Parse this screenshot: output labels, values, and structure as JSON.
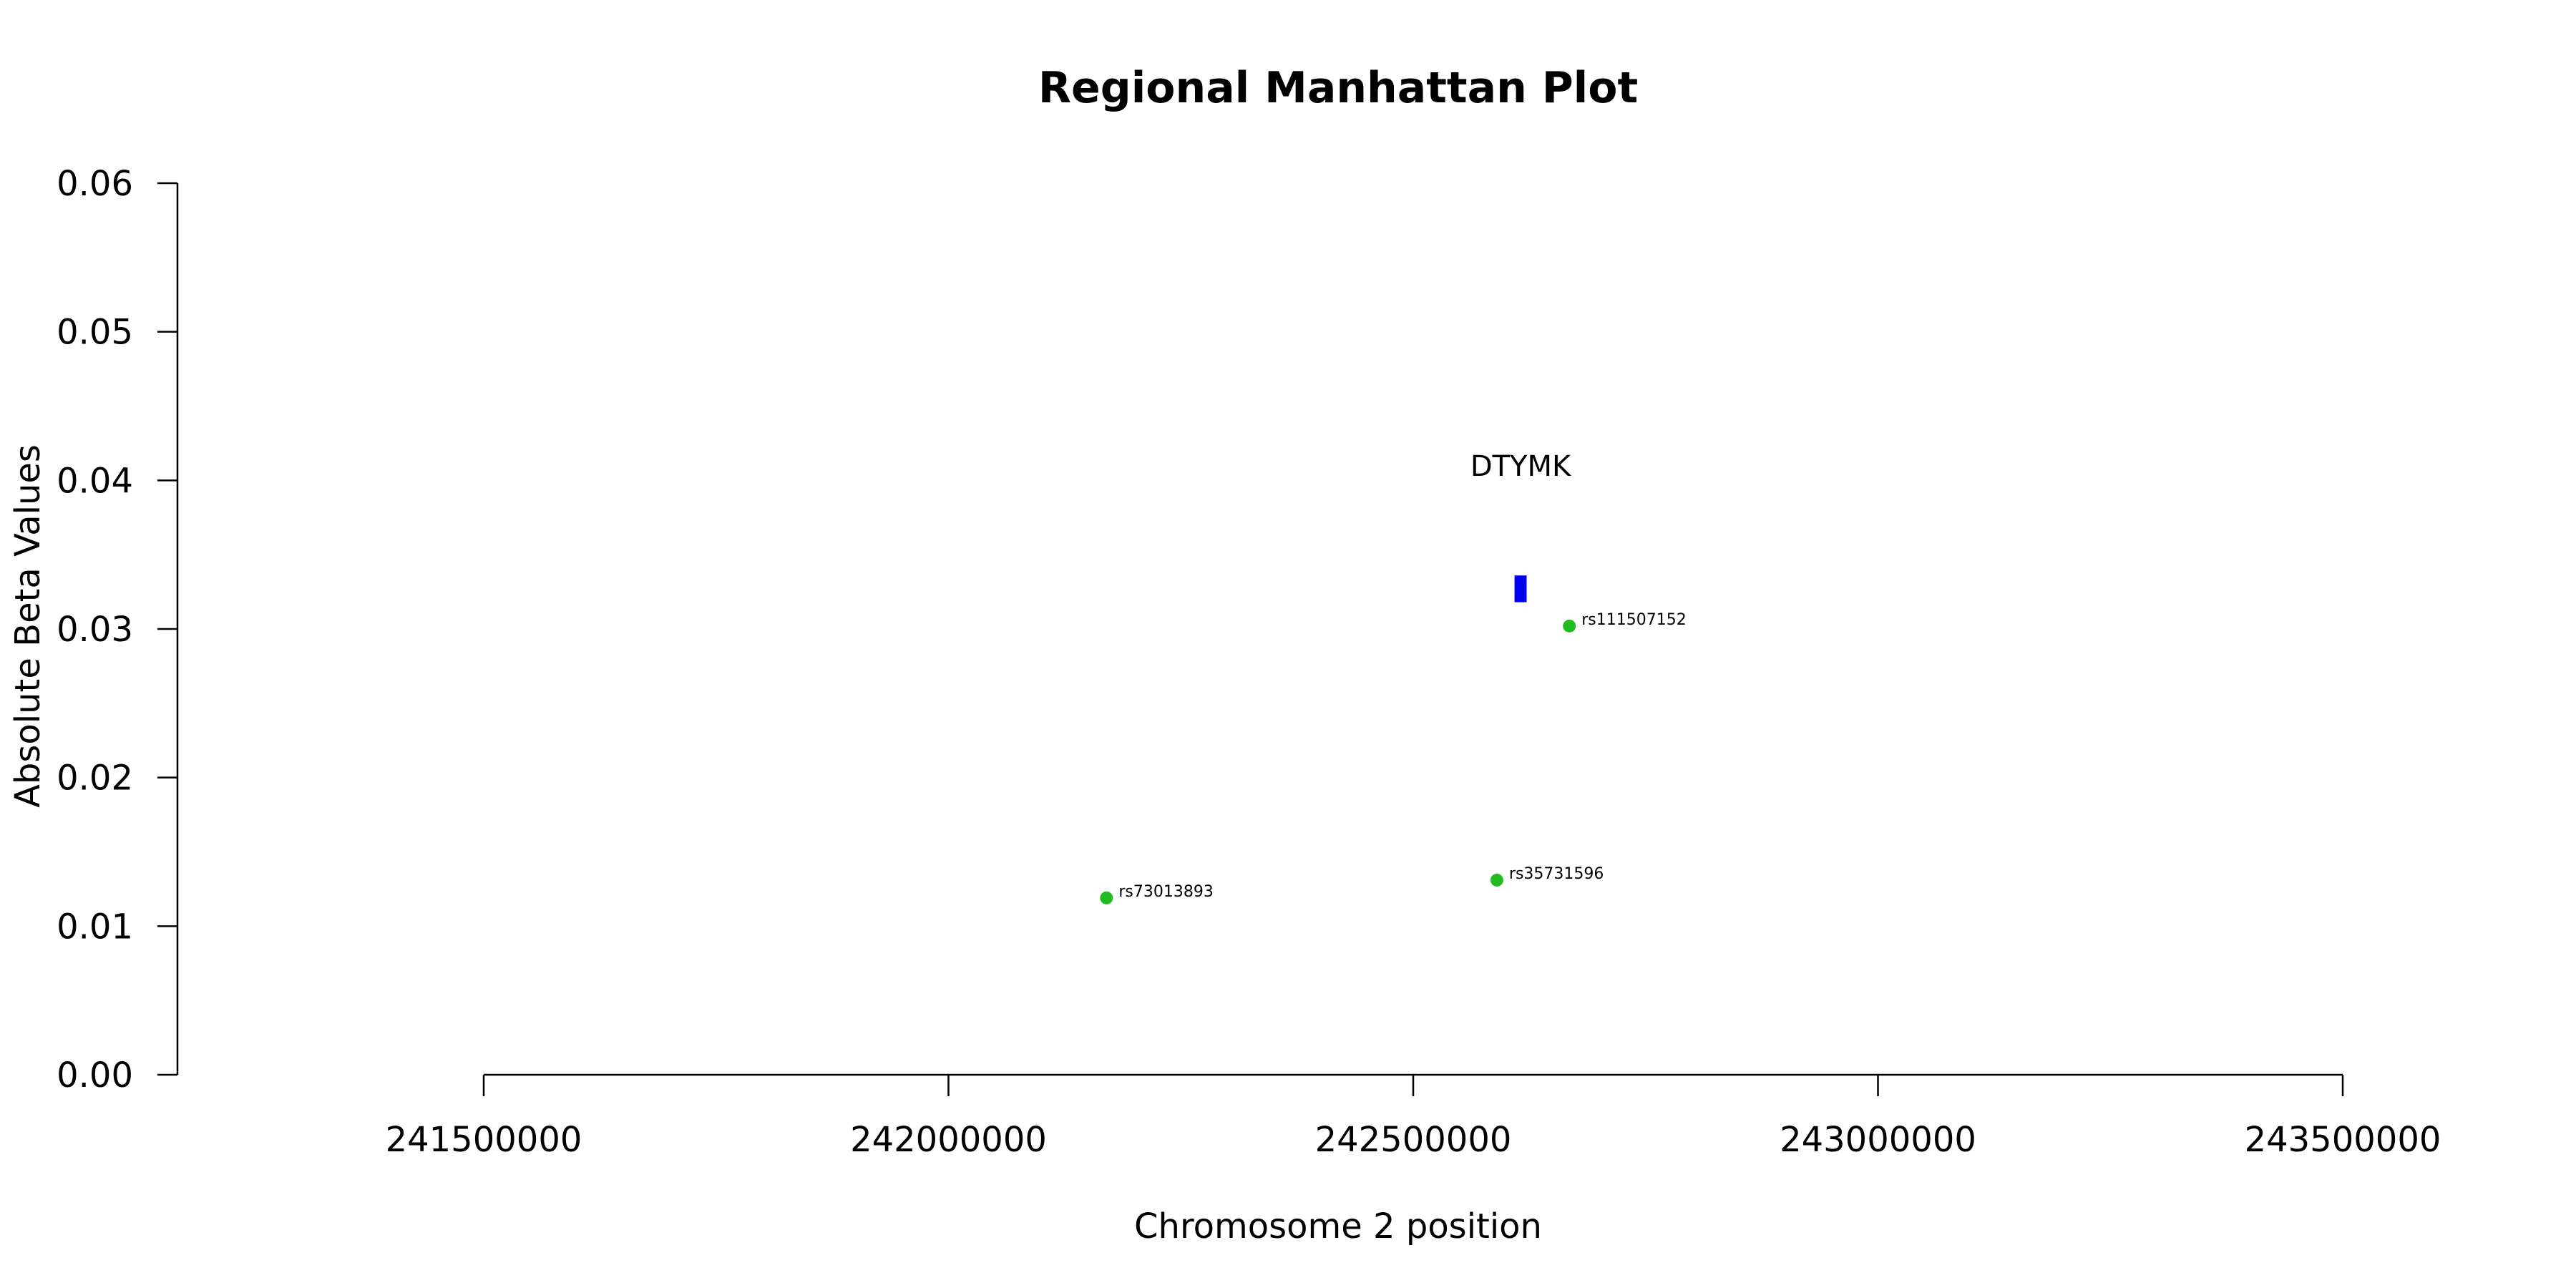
{
  "chart_data": {
    "type": "scatter",
    "title": "Regional Manhattan Plot",
    "xlabel": "Chromosome 2 position",
    "ylabel": "Absolute Beta Values",
    "xlim": [
      241170000,
      243670000
    ],
    "ylim": [
      0,
      0.06
    ],
    "x_ticks": [
      241500000,
      242000000,
      242500000,
      243000000,
      243500000
    ],
    "x_tick_labels": [
      "241500000",
      "242000000",
      "242500000",
      "243000000",
      "243500000"
    ],
    "y_ticks": [
      0,
      0.01,
      0.02,
      0.03,
      0.04,
      0.05,
      0.06
    ],
    "y_tick_labels": [
      "0.00",
      "0.01",
      "0.02",
      "0.03",
      "0.04",
      "0.05",
      "0.06"
    ],
    "point_color": "#22bb22",
    "points": [
      {
        "label": "rs73013893",
        "x": 242170000,
        "y": 0.0119
      },
      {
        "label": "rs35731596",
        "x": 242590000,
        "y": 0.0131
      },
      {
        "label": "rs111507152",
        "x": 242668000,
        "y": 0.0302
      }
    ],
    "gene": {
      "name": "DTYMK",
      "start": 242609000,
      "end": 242622000,
      "y_low": 0.0318,
      "y_high": 0.0336,
      "label_y": 0.0403,
      "color": "#0000ee"
    }
  }
}
